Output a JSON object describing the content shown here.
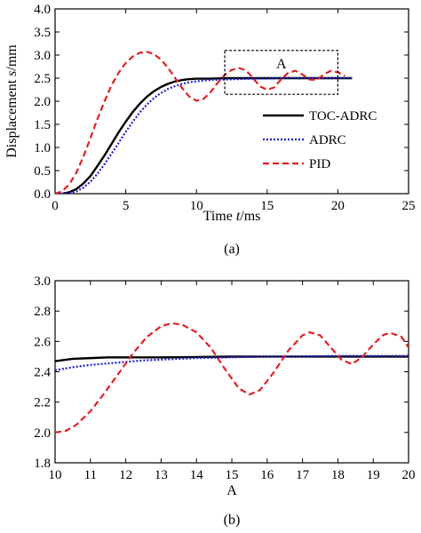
{
  "chart_data": [
    {
      "type": "line",
      "caption": "(a)",
      "xlabel": "Time t/ms",
      "ylabel": "Displacement s/mm",
      "xlim": [
        0,
        25
      ],
      "ylim": [
        0.0,
        4.0
      ],
      "xticks": [
        "0",
        "5",
        "10",
        "15",
        "20",
        "25"
      ],
      "yticks": [
        "0.0",
        "0.5",
        "1.0",
        "1.5",
        "2.0",
        "2.5",
        "3.0",
        "3.5",
        "4.0"
      ],
      "grid": false,
      "legend_position": "right",
      "annotation": {
        "label": "A",
        "x_range": [
          12,
          20
        ],
        "y_range": [
          2.15,
          3.1
        ]
      },
      "series": [
        {
          "name": "TOC-ADRC",
          "color": "#000000",
          "style": "solid",
          "x": [
            0.5,
            1,
            1.5,
            2,
            2.5,
            3,
            3.5,
            4,
            4.5,
            5,
            5.5,
            6,
            6.5,
            7,
            7.5,
            8,
            8.5,
            9,
            9.5,
            10,
            11,
            12,
            13,
            14,
            15,
            16,
            17,
            18,
            19,
            20,
            21
          ],
          "y": [
            0,
            0.03,
            0.1,
            0.22,
            0.38,
            0.6,
            0.83,
            1.08,
            1.33,
            1.56,
            1.77,
            1.95,
            2.1,
            2.22,
            2.31,
            2.38,
            2.43,
            2.46,
            2.48,
            2.49,
            2.49,
            2.5,
            2.5,
            2.5,
            2.5,
            2.5,
            2.5,
            2.5,
            2.5,
            2.5,
            2.5
          ]
        },
        {
          "name": "ADRC",
          "color": "#1f1fd0",
          "style": "dotted",
          "x": [
            0.5,
            1,
            1.5,
            2,
            2.5,
            3,
            3.5,
            4,
            4.5,
            5,
            5.5,
            6,
            6.5,
            7,
            7.5,
            8,
            8.5,
            9,
            9.5,
            10,
            10.5,
            11,
            12,
            13,
            14,
            15,
            16,
            17,
            18,
            19,
            20,
            21
          ],
          "y": [
            0,
            0.01,
            0.05,
            0.13,
            0.26,
            0.43,
            0.64,
            0.87,
            1.1,
            1.34,
            1.56,
            1.76,
            1.93,
            2.07,
            2.18,
            2.27,
            2.33,
            2.38,
            2.41,
            2.43,
            2.45,
            2.46,
            2.47,
            2.48,
            2.49,
            2.49,
            2.5,
            2.5,
            2.5,
            2.5,
            2.5,
            2.5
          ]
        },
        {
          "name": "PID",
          "color": "#e02020",
          "style": "dashed",
          "x": [
            0,
            0.5,
            1,
            1.5,
            2,
            2.5,
            3,
            3.5,
            4,
            4.5,
            5,
            5.5,
            6,
            6.5,
            7,
            7.5,
            8,
            8.5,
            9,
            9.5,
            10,
            10.5,
            11,
            11.5,
            12,
            12.5,
            13,
            13.5,
            14,
            14.5,
            15,
            15.5,
            16,
            16.5,
            17,
            17.5,
            18,
            18.5,
            19,
            19.5,
            20,
            20.5
          ],
          "y": [
            0,
            0.05,
            0.2,
            0.45,
            0.8,
            1.2,
            1.62,
            2.0,
            2.35,
            2.62,
            2.83,
            2.97,
            3.05,
            3.07,
            3.02,
            2.9,
            2.72,
            2.5,
            2.28,
            2.1,
            2.01,
            2.05,
            2.2,
            2.4,
            2.57,
            2.68,
            2.72,
            2.67,
            2.5,
            2.32,
            2.25,
            2.3,
            2.48,
            2.62,
            2.66,
            2.58,
            2.47,
            2.46,
            2.58,
            2.66,
            2.63,
            2.55
          ]
        }
      ]
    },
    {
      "type": "line",
      "caption": "(b)",
      "xlabel": "A",
      "ylabel": "",
      "xlim": [
        10,
        20
      ],
      "ylim": [
        1.8,
        3.0
      ],
      "xticks": [
        "10",
        "11",
        "12",
        "13",
        "14",
        "15",
        "16",
        "17",
        "18",
        "19",
        "20"
      ],
      "yticks": [
        "1.8",
        "2.0",
        "2.2",
        "2.4",
        "2.6",
        "2.8",
        "3.0"
      ],
      "grid": false,
      "series": [
        {
          "name": "TOC-ADRC",
          "color": "#000000",
          "style": "solid",
          "x": [
            10,
            10.5,
            11,
            11.5,
            12,
            13,
            14,
            15,
            16,
            17,
            18,
            19,
            20
          ],
          "y": [
            2.47,
            2.485,
            2.49,
            2.495,
            2.495,
            2.495,
            2.497,
            2.5,
            2.5,
            2.5,
            2.5,
            2.5,
            2.5
          ]
        },
        {
          "name": "ADRC",
          "color": "#1f1fd0",
          "style": "dotted",
          "x": [
            10,
            10.5,
            11,
            11.5,
            12,
            12.5,
            13,
            14,
            15,
            16,
            17,
            18,
            19,
            20
          ],
          "y": [
            2.41,
            2.43,
            2.445,
            2.455,
            2.465,
            2.475,
            2.48,
            2.49,
            2.495,
            2.5,
            2.5,
            2.505,
            2.505,
            2.505
          ]
        },
        {
          "name": "PID",
          "color": "#e02020",
          "style": "dashed",
          "x": [
            10,
            10.3,
            10.6,
            11,
            11.4,
            11.8,
            12.2,
            12.6,
            13,
            13.3,
            13.6,
            14,
            14.4,
            14.8,
            15.2,
            15.5,
            15.8,
            16.2,
            16.6,
            17,
            17.2,
            17.5,
            17.8,
            18.1,
            18.4,
            18.7,
            19,
            19.3,
            19.5,
            19.8,
            20
          ],
          "y": [
            2.0,
            2.01,
            2.05,
            2.14,
            2.26,
            2.39,
            2.52,
            2.63,
            2.7,
            2.72,
            2.71,
            2.66,
            2.56,
            2.42,
            2.29,
            2.25,
            2.28,
            2.4,
            2.54,
            2.64,
            2.66,
            2.64,
            2.56,
            2.48,
            2.45,
            2.5,
            2.58,
            2.645,
            2.655,
            2.63,
            2.56
          ]
        }
      ]
    }
  ]
}
